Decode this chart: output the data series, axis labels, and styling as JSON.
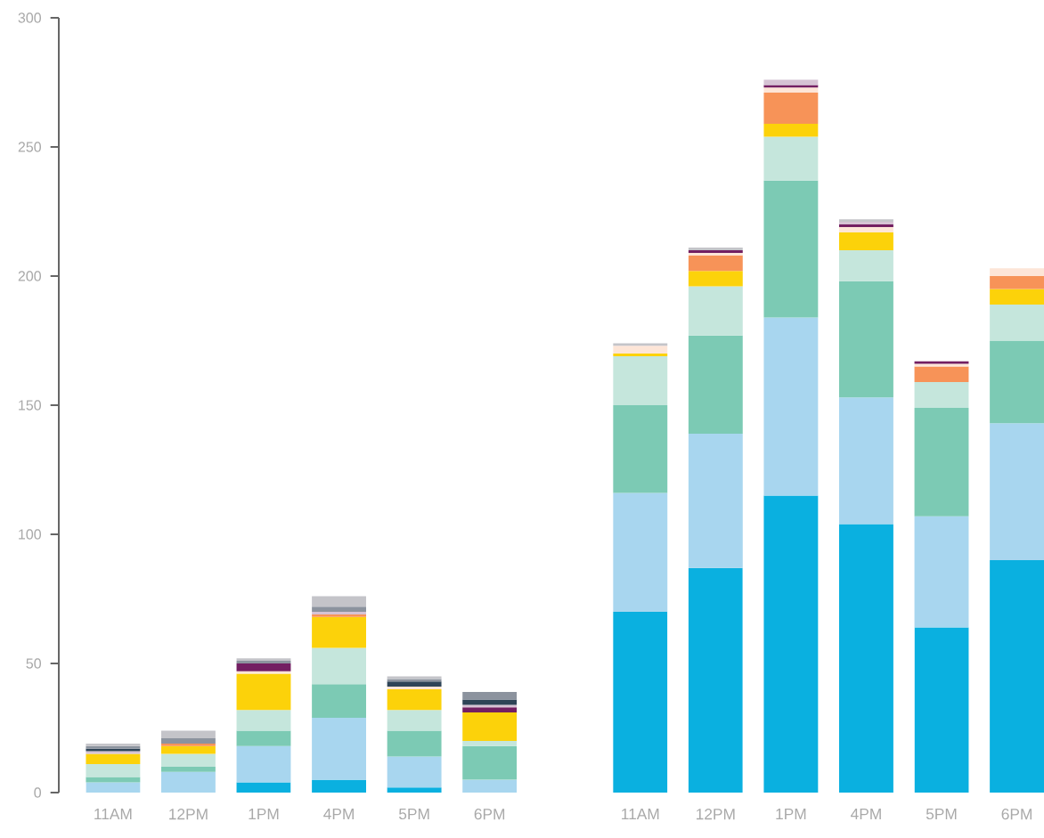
{
  "chart_data": {
    "type": "bar",
    "stacked": true,
    "categories": [
      "11AM",
      "12PM",
      "1PM",
      "4PM",
      "5PM",
      "6PM",
      null,
      "11AM",
      "12PM",
      "1PM",
      "4PM",
      "5PM",
      "6PM"
    ],
    "ylim": [
      0,
      300
    ],
    "yticks": [
      0,
      50,
      100,
      150,
      200,
      250,
      300
    ],
    "series": [
      {
        "color": "#0ab0e0",
        "values": [
          null,
          null,
          4,
          5,
          2,
          null,
          null,
          70,
          87,
          115,
          104,
          64,
          90
        ]
      },
      {
        "color": "#a8d6ef",
        "values": [
          4,
          8,
          14,
          24,
          12,
          5,
          null,
          46,
          52,
          69,
          49,
          43,
          53
        ]
      },
      {
        "color": "#7ccab4",
        "values": [
          2,
          2,
          6,
          13,
          10,
          13,
          null,
          34,
          38,
          53,
          45,
          42,
          32
        ]
      },
      {
        "color": "#c5e6dc",
        "values": [
          5,
          5,
          8,
          14,
          8,
          2,
          null,
          19,
          19,
          17,
          12,
          10,
          14
        ]
      },
      {
        "color": "#fcd20a",
        "values": [
          4,
          3,
          14,
          12,
          8,
          11,
          null,
          1,
          6,
          5,
          7,
          null,
          6
        ]
      },
      {
        "color": "#f79358",
        "values": [
          null,
          1,
          null,
          1,
          null,
          null,
          null,
          null,
          6,
          12,
          null,
          6,
          5
        ]
      },
      {
        "color": "#fde5d7",
        "values": [
          null,
          null,
          1,
          null,
          1,
          null,
          null,
          3,
          1,
          2,
          2,
          1,
          3
        ]
      },
      {
        "color": "#731f62",
        "values": [
          null,
          null,
          3,
          null,
          null,
          2,
          null,
          null,
          1,
          1,
          1,
          1,
          null
        ]
      },
      {
        "color": "#d6c3d4",
        "values": [
          1,
          null,
          null,
          1,
          null,
          1,
          null,
          null,
          null,
          2,
          1,
          null,
          null
        ]
      },
      {
        "color": "#2e4457",
        "values": [
          1,
          null,
          null,
          null,
          2,
          2,
          null,
          null,
          null,
          null,
          null,
          null,
          null
        ]
      },
      {
        "color": "#8c939e",
        "values": [
          1,
          2,
          1,
          2,
          1,
          3,
          null,
          null,
          null,
          null,
          null,
          null,
          null
        ]
      },
      {
        "color": "#c4c4c9",
        "values": [
          1,
          3,
          1,
          4,
          1,
          null,
          null,
          1,
          1,
          null,
          1,
          null,
          null
        ]
      }
    ]
  }
}
